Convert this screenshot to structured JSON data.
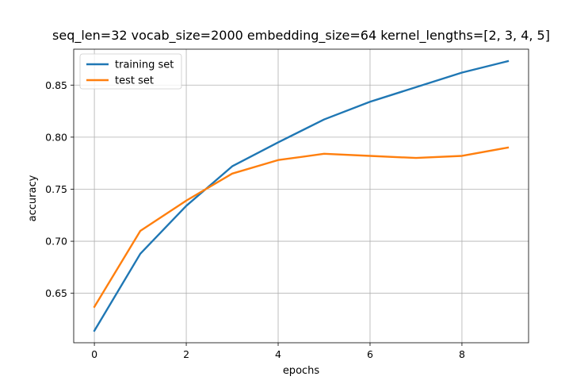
{
  "chart_data": {
    "type": "line",
    "title": "seq_len=32 vocab_size=2000 embedding_size=64 kernel_lengths=[2, 3, 4, 5]",
    "xlabel": "epochs",
    "ylabel": "accuracy",
    "x": [
      0,
      1,
      2,
      3,
      4,
      5,
      6,
      7,
      8,
      9
    ],
    "xlim": [
      -0.45,
      9.45
    ],
    "ylim": [
      0.6025,
      0.8845
    ],
    "xticks": [
      0,
      2,
      4,
      6,
      8
    ],
    "xtick_labels": [
      "0",
      "2",
      "4",
      "6",
      "8"
    ],
    "yticks": [
      0.65,
      0.7,
      0.75,
      0.8,
      0.85
    ],
    "ytick_labels": [
      "0.65",
      "0.70",
      "0.75",
      "0.80",
      "0.85"
    ],
    "grid": true,
    "legend_position": "top-left",
    "series": [
      {
        "name": "training set",
        "color": "#1f77b4",
        "values": [
          0.614,
          0.688,
          0.734,
          0.772,
          0.795,
          0.817,
          0.834,
          0.848,
          0.862,
          0.873
        ]
      },
      {
        "name": "test set",
        "color": "#ff7f0e",
        "values": [
          0.637,
          0.71,
          0.739,
          0.765,
          0.778,
          0.784,
          0.782,
          0.78,
          0.782,
          0.79
        ]
      }
    ]
  }
}
